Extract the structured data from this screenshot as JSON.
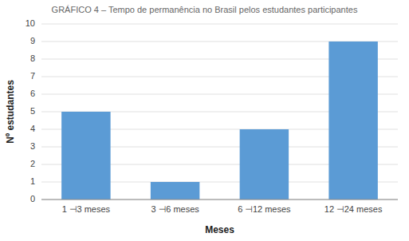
{
  "chart_data": {
    "type": "bar",
    "title": "GRÁFICO 4 – Tempo de permanência no Brasil pelos estudantes participantes",
    "categories": [
      "1 ⊣3 meses",
      "3 ⊣6 meses",
      "6 ⊣12 meses",
      "12 ⊣24 meses"
    ],
    "values": [
      5,
      1,
      4,
      9
    ],
    "color": "#5B9BD5",
    "xlabel": "Meses",
    "ylabel": "Nº estudantes",
    "ylim": [
      0,
      10
    ],
    "yticks": [
      0,
      1,
      2,
      3,
      4,
      5,
      6,
      7,
      8,
      9,
      10
    ],
    "grid": true
  }
}
